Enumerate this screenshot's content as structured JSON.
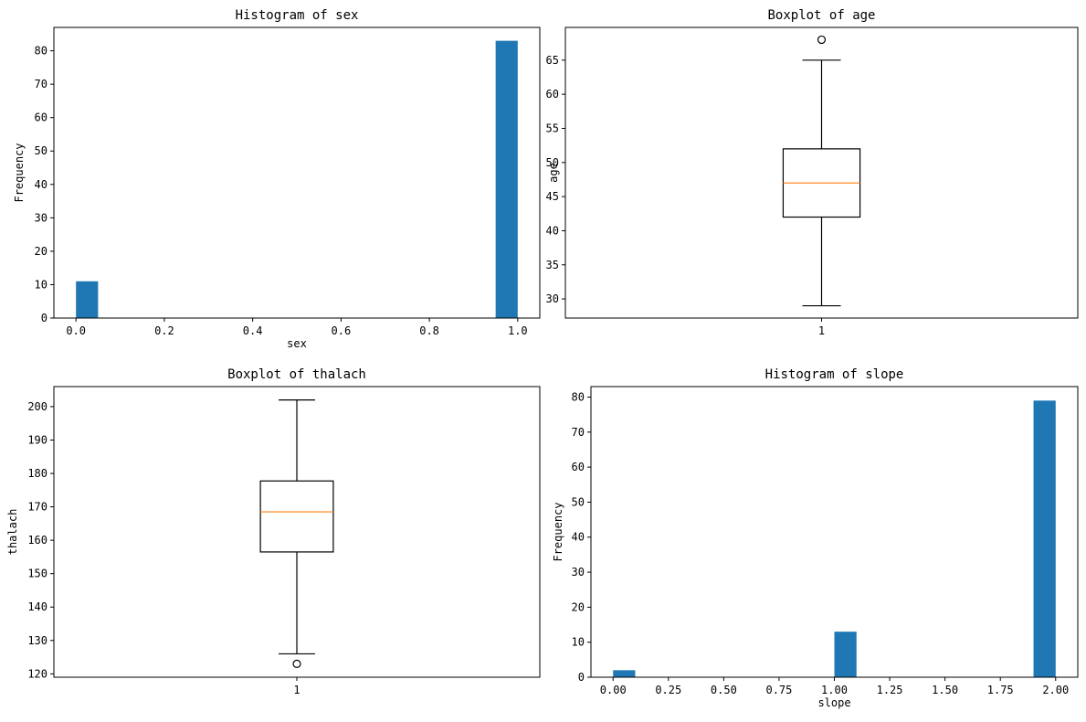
{
  "chart_data": [
    {
      "type": "bar",
      "subtype": "histogram",
      "title": "Histogram of sex",
      "xlabel": "sex",
      "ylabel": "Frequency",
      "bins": [
        {
          "start": 0.0,
          "end": 0.05,
          "count": 11
        },
        {
          "start": 0.95,
          "end": 1.0,
          "count": 83
        }
      ],
      "xlim": [
        -0.05,
        1.05
      ],
      "ylim": [
        0,
        87
      ],
      "xticks": [
        0.0,
        0.2,
        0.4,
        0.6,
        0.8,
        1.0
      ],
      "xtick_labels": [
        "0.0",
        "0.2",
        "0.4",
        "0.6",
        "0.8",
        "1.0"
      ],
      "yticks": [
        0,
        10,
        20,
        30,
        40,
        50,
        60,
        70,
        80
      ],
      "ytick_labels": [
        "0",
        "10",
        "20",
        "30",
        "40",
        "50",
        "60",
        "70",
        "80"
      ],
      "color": "#1f77b4"
    },
    {
      "type": "boxplot",
      "title": "Boxplot of age",
      "xlabel": "",
      "ylabel": "age",
      "category": "1",
      "whisker_low": 29,
      "q1": 42,
      "median": 47,
      "q3": 52,
      "whisker_high": 65,
      "fliers": [
        68
      ],
      "ylim": [
        27.2,
        69.8
      ],
      "yticks": [
        30,
        35,
        40,
        45,
        50,
        55,
        60,
        65
      ],
      "ytick_labels": [
        "30",
        "35",
        "40",
        "45",
        "50",
        "55",
        "60",
        "65"
      ],
      "median_color": "#ff7f0e"
    },
    {
      "type": "boxplot",
      "title": "Boxplot of thalach",
      "xlabel": "",
      "ylabel": "thalach",
      "category": "1",
      "whisker_low": 126,
      "q1": 156.5,
      "median": 168.5,
      "q3": 177.75,
      "whisker_high": 202,
      "fliers": [
        123
      ],
      "ylim": [
        119,
        206
      ],
      "yticks": [
        120,
        130,
        140,
        150,
        160,
        170,
        180,
        190,
        200
      ],
      "ytick_labels": [
        "120",
        "130",
        "140",
        "150",
        "160",
        "170",
        "180",
        "190",
        "200"
      ],
      "median_color": "#ff7f0e"
    },
    {
      "type": "bar",
      "subtype": "histogram",
      "title": "Histogram of slope",
      "xlabel": "slope",
      "ylabel": "Frequency",
      "bins": [
        {
          "start": 0.0,
          "end": 0.1,
          "count": 2
        },
        {
          "start": 1.0,
          "end": 1.1,
          "count": 13
        },
        {
          "start": 1.9,
          "end": 2.0,
          "count": 79
        }
      ],
      "xlim": [
        -0.1,
        2.1
      ],
      "ylim": [
        0,
        83
      ],
      "xticks": [
        0.0,
        0.25,
        0.5,
        0.75,
        1.0,
        1.25,
        1.5,
        1.75,
        2.0
      ],
      "xtick_labels": [
        "0.00",
        "0.25",
        "0.50",
        "0.75",
        "1.00",
        "1.25",
        "1.50",
        "1.75",
        "2.00"
      ],
      "yticks": [
        0,
        10,
        20,
        30,
        40,
        50,
        60,
        70,
        80
      ],
      "ytick_labels": [
        "0",
        "10",
        "20",
        "30",
        "40",
        "50",
        "60",
        "70",
        "80"
      ],
      "color": "#1f77b4"
    }
  ]
}
